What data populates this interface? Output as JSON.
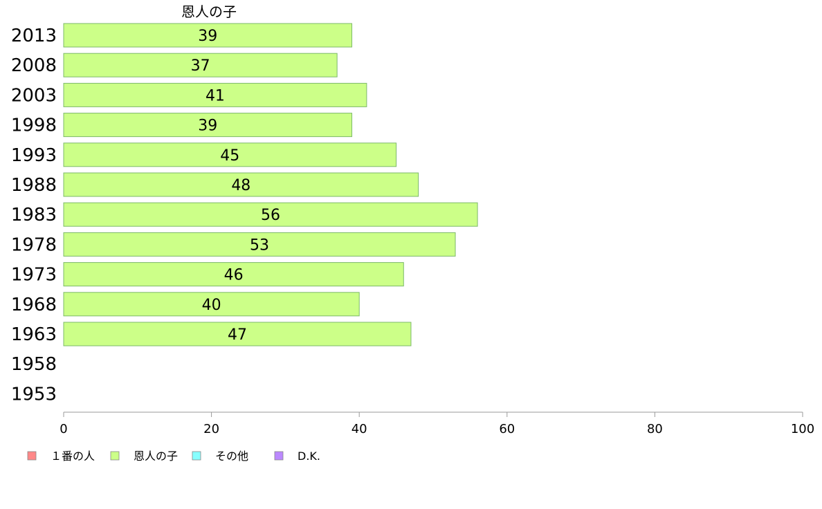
{
  "chart_data": {
    "type": "bar",
    "orientation": "horizontal",
    "title": "",
    "xlabel": "",
    "ylabel": "",
    "xlim": [
      0,
      100
    ],
    "x_ticks": [
      0,
      20,
      40,
      60,
      80,
      100
    ],
    "grid": false,
    "legend_position": "bottom-left",
    "categories": [
      "2013",
      "2008",
      "2003",
      "1998",
      "1993",
      "1988",
      "1983",
      "1978",
      "1973",
      "1968",
      "1963",
      "1958",
      "1953"
    ],
    "series_heading": "恩人の子",
    "series": [
      {
        "name": "恩人の子",
        "color": "#ccff88",
        "values": [
          39,
          37,
          41,
          39,
          45,
          48,
          56,
          53,
          46,
          40,
          47,
          null,
          null
        ],
        "value_labels": [
          "39",
          "37",
          "41",
          "39",
          "45",
          "48",
          "56",
          "53",
          "46",
          "40",
          "47",
          "",
          ""
        ]
      }
    ],
    "legend": [
      {
        "label": "１番の人",
        "color": "#ff8888"
      },
      {
        "label": "恩人の子",
        "color": "#ccff88"
      },
      {
        "label": "その他",
        "color": "#88ffff"
      },
      {
        "label": "D.K.",
        "color": "#bb88ff"
      }
    ]
  }
}
